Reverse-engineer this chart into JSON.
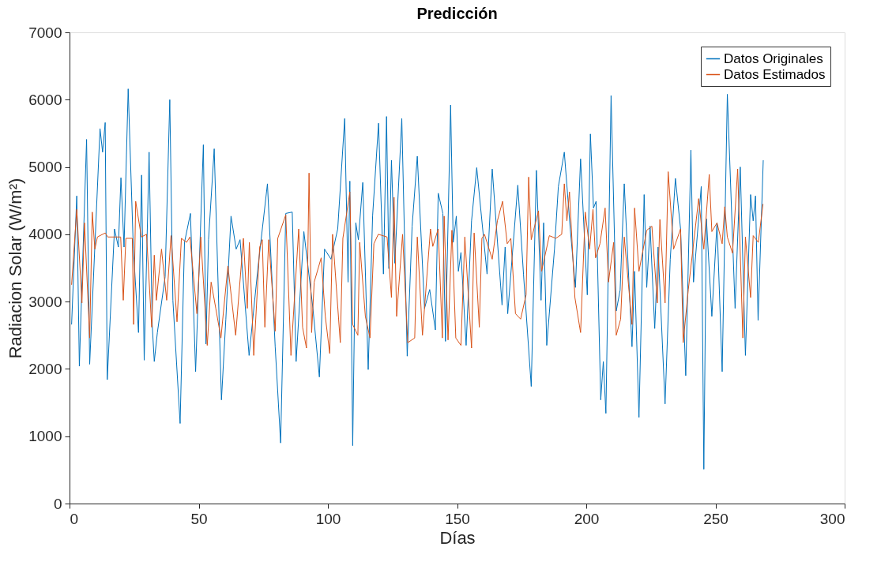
{
  "chart_data": {
    "type": "line",
    "title": "Predicción",
    "xlabel": "Días",
    "ylabel": "Radiacion Solar (W/m²)",
    "xlim": [
      0,
      300
    ],
    "xticks": [
      0,
      50,
      100,
      150,
      200,
      250,
      300
    ],
    "ylim": [
      0,
      7000
    ],
    "yticks": [
      0,
      1000,
      2000,
      3000,
      4000,
      5000,
      6000,
      7000
    ],
    "grid": false,
    "legend": "top right",
    "marker": "none",
    "line_style": "solid",
    "series": [
      {
        "name": "Datos Originales",
        "color": "#0072bd",
        "x": [
          0.8,
          2.8,
          3.8,
          6.6,
          7.8,
          11.8,
          12.8,
          13.8,
          14.6,
          17.4,
          18.9,
          19.9,
          21.1,
          22.7,
          24.7,
          26.7,
          27.9,
          28.9,
          30.8,
          32,
          32.8,
          34,
          37,
          38.8,
          40,
          42.8,
          44.5,
          46.8,
          48.8,
          51.8,
          52.8,
          53.8,
          56,
          58.8,
          60.5,
          62.5,
          64.5,
          66,
          69.5,
          73,
          76.6,
          79.6,
          81.7,
          83.7,
          86.2,
          87.7,
          90.7,
          94.2,
          96.7,
          98.7,
          101.2,
          103.8,
          106.5,
          107.8,
          108.5,
          109.6,
          110.8,
          111.8,
          113.5,
          115.6,
          117.3,
          119.6,
          121.5,
          122.7,
          123.6,
          124.6,
          125.9,
          128.6,
          130.7,
          132.6,
          134.6,
          137.4,
          139.4,
          141.6,
          142.7,
          144.5,
          145.5,
          147.5,
          148.5,
          149.7,
          150.5,
          151.5,
          153.5,
          155.6,
          157.6,
          161.6,
          163.6,
          167.4,
          168.6,
          169.6,
          173.5,
          175.7,
          178.7,
          180.7,
          182.5,
          183.5,
          184.7,
          187.7,
          189.2,
          191.5,
          193.8,
          195.8,
          197.8,
          200.4,
          201.6,
          202.8,
          203.8,
          205.6,
          206.6,
          207.6,
          209.6,
          211.6,
          213.1,
          214.7,
          217.7,
          218.7,
          220.4,
          222.4,
          223.4,
          224.7,
          226.5,
          227.8,
          230.5,
          232.5,
          234.5,
          236.5,
          238.5,
          240.5,
          241.5,
          244.5,
          245.5,
          246.5,
          248.6,
          250.6,
          252.6,
          254.6,
          257.6,
          259.6,
          261.6,
          263.6,
          264.6,
          265.5,
          266.5,
          268.5
        ],
        "values": [
          2660,
          4570,
          2040,
          5410,
          2070,
          5570,
          5220,
          5660,
          1840,
          4080,
          3810,
          4840,
          3810,
          6160,
          3780,
          2540,
          4880,
          2130,
          5220,
          2660,
          2110,
          2540,
          3370,
          6000,
          3020,
          1190,
          3880,
          4310,
          1960,
          5330,
          2370,
          3920,
          5270,
          1540,
          2740,
          4270,
          3780,
          3920,
          2200,
          3530,
          4750,
          2330,
          900,
          4310,
          4330,
          2110,
          4040,
          2900,
          1880,
          3780,
          3630,
          4080,
          5720,
          3290,
          4790,
          860,
          4170,
          3920,
          4770,
          1990,
          4270,
          5650,
          3410,
          5750,
          3490,
          5100,
          3570,
          5720,
          2190,
          4120,
          5160,
          2900,
          3180,
          2580,
          4610,
          4310,
          2410,
          5920,
          3880,
          4270,
          3450,
          3730,
          2350,
          4200,
          4990,
          3410,
          4970,
          2950,
          3810,
          2820,
          4730,
          3410,
          1740,
          4950,
          3020,
          4170,
          2350,
          3780,
          4710,
          5220,
          4080,
          3210,
          5120,
          3100,
          5490,
          4390,
          4490,
          1540,
          2110,
          1340,
          6060,
          2860,
          3170,
          4750,
          2330,
          3450,
          1280,
          4590,
          3210,
          4120,
          2600,
          3810,
          1480,
          3630,
          4830,
          4080,
          1900,
          5250,
          3290,
          4710,
          510,
          4230,
          2780,
          4170,
          1960,
          6080,
          2900,
          5000,
          2200,
          4590,
          4200,
          4570,
          2720,
          5100
        ]
      },
      {
        "name": "Datos Estimados",
        "color": "#d95319",
        "x": [
          0.8,
          2.8,
          4.8,
          5.8,
          7.8,
          8.8,
          9.8,
          10.8,
          13.8,
          14.8,
          19.8,
          20.8,
          21.8,
          24.3,
          24.8,
          25.6,
          27.8,
          29.8,
          31.8,
          32.8,
          33.6,
          35.6,
          37.6,
          39.3,
          41.6,
          43.3,
          45.3,
          46.6,
          49.3,
          50.8,
          53.3,
          54.8,
          56.6,
          58.6,
          61.3,
          64.3,
          67.3,
          68.8,
          69.6,
          71.3,
          73.6,
          74.6,
          75.6,
          77.1,
          79.6,
          80.6,
          83.7,
          85.7,
          88.7,
          90.2,
          91.7,
          92.7,
          93.7,
          94.7,
          97.4,
          99,
          100.7,
          101.8,
          104.8,
          105.8,
          108.5,
          109.6,
          111.6,
          112.3,
          114.5,
          116.3,
          117.8,
          119.5,
          122.9,
          124.6,
          125.6,
          126.6,
          128.9,
          130.9,
          133.6,
          134.6,
          136.6,
          139.7,
          140.6,
          142.7,
          144.3,
          145,
          146.5,
          148,
          149.5,
          151.5,
          153,
          155.6,
          156.6,
          158.6,
          159.6,
          160.6,
          163.6,
          165.6,
          167.6,
          169.4,
          170.8,
          172.6,
          174.6,
          176.7,
          177.7,
          178.7,
          181.5,
          182.7,
          185.7,
          188.2,
          190.5,
          191.5,
          192.5,
          193.5,
          195.6,
          197.8,
          199.6,
          201.3,
          202.6,
          203.6,
          205.3,
          207.3,
          208.6,
          210.6,
          211.6,
          213.3,
          214.7,
          217.7,
          218.7,
          220.4,
          223.4,
          225.4,
          227.5,
          228.5,
          230.5,
          231.7,
          233.8,
          236.5,
          237.5,
          239.5,
          243.5,
          245.5,
          247.6,
          248.6,
          250.6,
          252.6,
          253.6,
          254.6,
          256.6,
          258.6,
          260.6,
          261.6,
          263.6,
          264.6,
          266.6,
          268.4
        ],
        "values": [
          3250,
          4370,
          2980,
          4170,
          2460,
          4330,
          3780,
          3960,
          4020,
          3960,
          3960,
          3020,
          3940,
          3940,
          2660,
          4490,
          3960,
          4000,
          2620,
          3690,
          3020,
          3780,
          3020,
          3980,
          2700,
          3940,
          3880,
          3960,
          2820,
          3960,
          2350,
          3290,
          2900,
          2460,
          3530,
          2500,
          3940,
          2900,
          3880,
          2200,
          3810,
          3920,
          2620,
          3920,
          2560,
          3940,
          4290,
          2200,
          4080,
          2620,
          2310,
          4910,
          2540,
          3290,
          3650,
          2780,
          2230,
          4000,
          2390,
          3940,
          4630,
          2660,
          2500,
          3880,
          2780,
          2460,
          3860,
          4000,
          3960,
          3060,
          4550,
          2780,
          4000,
          2390,
          2460,
          3960,
          2500,
          4080,
          3820,
          4080,
          2460,
          4270,
          2430,
          4060,
          2460,
          2350,
          3960,
          2310,
          4020,
          2620,
          3940,
          4000,
          3630,
          4200,
          4490,
          3860,
          3940,
          2820,
          2740,
          3100,
          4850,
          3920,
          4350,
          3450,
          3980,
          3940,
          4000,
          4750,
          4200,
          4630,
          3060,
          2540,
          4330,
          3780,
          4370,
          3650,
          3860,
          4390,
          3290,
          3880,
          2500,
          2740,
          3960,
          2660,
          4390,
          3450,
          4060,
          4120,
          2980,
          4220,
          2980,
          4930,
          3780,
          4080,
          2390,
          3180,
          4530,
          3780,
          4890,
          4040,
          4170,
          3860,
          4410,
          3960,
          3720,
          4970,
          2460,
          3960,
          3060,
          3980,
          3880,
          4450
        ]
      }
    ]
  }
}
